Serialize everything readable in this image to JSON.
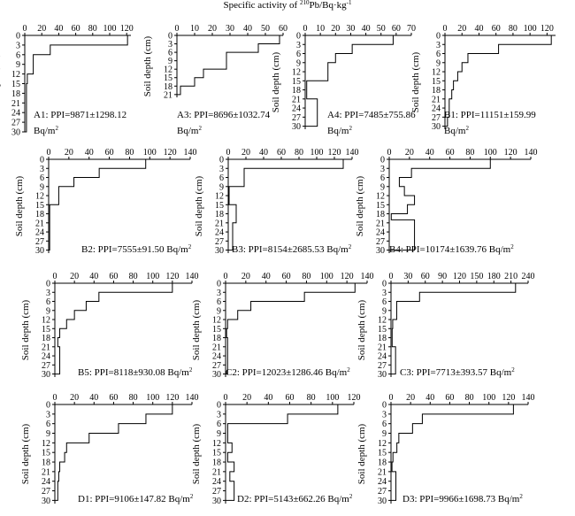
{
  "figure": {
    "title_prefix": "Specific activity of ",
    "title_sup": "210",
    "title_mid": "Pb/Bq·kg",
    "title_sup2": "-1"
  },
  "chart_data": [
    {
      "id": "A1",
      "type": "line",
      "ylabel": "Soil depth (cm)",
      "label": "A1: PPI=9871±1298.12 Bq/m",
      "label_line2": "Bq/m",
      "label_sup": "2",
      "xlim": [
        0,
        125
      ],
      "xticks": [
        0,
        20,
        40,
        60,
        80,
        100,
        120
      ],
      "ylim": [
        0,
        30
      ],
      "yticks": [
        0,
        3,
        6,
        9,
        12,
        15,
        18,
        21,
        24,
        27,
        30
      ],
      "steps": [
        [
          0,
          3,
          121
        ],
        [
          3,
          6,
          30
        ],
        [
          6,
          12,
          10
        ],
        [
          12,
          15,
          3
        ],
        [
          15,
          18,
          2
        ],
        [
          18,
          21,
          2
        ],
        [
          21,
          24,
          2
        ],
        [
          24,
          27,
          2
        ],
        [
          27,
          30,
          2
        ]
      ]
    },
    {
      "id": "A3",
      "type": "line",
      "ylabel": "Soil depth (cm)",
      "label": "A3: PPI=8696±1032.74",
      "label_line2": "Bq/m",
      "label_sup": "2",
      "xlim": [
        0,
        60
      ],
      "xticks": [
        0,
        10,
        20,
        30,
        40,
        50,
        60
      ],
      "ylim": [
        0,
        22
      ],
      "yticks": [
        0,
        3,
        6,
        9,
        12,
        15,
        18,
        21
      ],
      "steps": [
        [
          0,
          3,
          58
        ],
        [
          3,
          6,
          46
        ],
        [
          6,
          12,
          28
        ],
        [
          12,
          15,
          15
        ],
        [
          15,
          18,
          10
        ],
        [
          18,
          21,
          2
        ]
      ]
    },
    {
      "id": "A4",
      "type": "line",
      "ylabel": "Soil depth (cm)",
      "label": "A4: PPI=7485±755.86",
      "label_line2": "Bq/m",
      "label_sup": "2",
      "xlim": [
        0,
        70
      ],
      "xticks": [
        0,
        10,
        20,
        30,
        40,
        50,
        60,
        70
      ],
      "ylim": [
        0,
        31
      ],
      "yticks": [
        0,
        3,
        6,
        9,
        12,
        15,
        18,
        21,
        24,
        27,
        30
      ],
      "steps": [
        [
          0,
          3,
          58
        ],
        [
          3,
          6,
          31
        ],
        [
          6,
          9,
          20
        ],
        [
          9,
          15,
          15
        ],
        [
          15,
          21,
          1
        ],
        [
          21,
          30,
          8
        ]
      ]
    },
    {
      "id": "B1",
      "type": "line",
      "ylabel": "Soil depth (cm)",
      "label": "B1: PPI=11151±159.99",
      "label_line2": "Bq/m",
      "label_sup": "2",
      "xlim": [
        0,
        130
      ],
      "xticks": [
        0,
        20,
        40,
        60,
        80,
        100,
        120
      ],
      "ylim": [
        0,
        31
      ],
      "yticks": [
        0,
        3,
        6,
        9,
        12,
        15,
        18,
        21,
        24,
        27,
        30
      ],
      "steps": [
        [
          0,
          3,
          125
        ],
        [
          3,
          6,
          63
        ],
        [
          6,
          9,
          27
        ],
        [
          9,
          12,
          20
        ],
        [
          12,
          15,
          15
        ],
        [
          15,
          18,
          10
        ],
        [
          18,
          21,
          8
        ],
        [
          21,
          24,
          5
        ],
        [
          24,
          27,
          5
        ],
        [
          27,
          30,
          3
        ]
      ]
    },
    {
      "id": "B2",
      "type": "line",
      "ylabel": "Soil depth (cm)",
      "label": "B2: PPI=7555±91.50 Bq/m",
      "label_sup": "2",
      "xlim": [
        0,
        140
      ],
      "xticks": [
        0,
        20,
        40,
        60,
        80,
        100,
        120,
        140
      ],
      "ylim": [
        0,
        31
      ],
      "yticks": [
        0,
        3,
        6,
        9,
        12,
        15,
        18,
        21,
        24,
        27,
        30
      ],
      "steps": [
        [
          0,
          3,
          96
        ],
        [
          3,
          6,
          50
        ],
        [
          6,
          9,
          25
        ],
        [
          9,
          15,
          10
        ],
        [
          15,
          30,
          1
        ]
      ]
    },
    {
      "id": "B3",
      "type": "line",
      "ylabel": "Soil depth (cm)",
      "label": "B3: PPI=8154±2685.53 Bq/m",
      "label_sup": "2",
      "xlim": [
        0,
        140
      ],
      "xticks": [
        0,
        20,
        40,
        60,
        80,
        100,
        120,
        140
      ],
      "ylim": [
        0,
        31
      ],
      "yticks": [
        0,
        3,
        6,
        9,
        12,
        15,
        18,
        21,
        24,
        27,
        30
      ],
      "steps": [
        [
          0,
          3,
          130
        ],
        [
          3,
          9,
          18
        ],
        [
          9,
          15,
          1
        ],
        [
          15,
          21,
          9
        ],
        [
          21,
          30,
          5
        ]
      ]
    },
    {
      "id": "B4",
      "type": "line",
      "ylabel": "Soil depth (cm)",
      "label": "B4: PPI=10174±1639.76 Bq/m",
      "label_sup": "2",
      "xlim": [
        0,
        140
      ],
      "xticks": [
        0,
        20,
        40,
        60,
        80,
        100,
        120,
        140
      ],
      "ylim": [
        0,
        31
      ],
      "yticks": [
        0,
        3,
        6,
        9,
        12,
        15,
        18,
        21,
        24,
        27,
        30
      ],
      "steps": [
        [
          0,
          3,
          100
        ],
        [
          3,
          6,
          22
        ],
        [
          6,
          9,
          10
        ],
        [
          9,
          12,
          15
        ],
        [
          12,
          15,
          25
        ],
        [
          15,
          18,
          18
        ],
        [
          18,
          20,
          2
        ],
        [
          20,
          30,
          25
        ]
      ]
    },
    {
      "id": "B5",
      "type": "line",
      "ylabel": "Soil depth (cm)",
      "label": "B5: PPI=8118±930.08 Bq/m",
      "label_sup": "2",
      "xlim": [
        0,
        140
      ],
      "xticks": [
        0,
        20,
        40,
        60,
        80,
        100,
        120,
        140
      ],
      "ylim": [
        0,
        31
      ],
      "yticks": [
        0,
        3,
        6,
        9,
        12,
        15,
        18,
        21,
        24,
        27,
        30
      ],
      "steps": [
        [
          0,
          3,
          120
        ],
        [
          3,
          6,
          45
        ],
        [
          6,
          9,
          32
        ],
        [
          9,
          12,
          20
        ],
        [
          12,
          15,
          12
        ],
        [
          15,
          18,
          5
        ],
        [
          18,
          21,
          3
        ],
        [
          21,
          30,
          5
        ]
      ]
    },
    {
      "id": "C2",
      "type": "line",
      "ylabel": "Soil depth (cm)",
      "label": "C2: PPI=12023±1286.46 Bq/m",
      "label_sup": "2",
      "xlim": [
        0,
        140
      ],
      "xticks": [
        0,
        20,
        40,
        60,
        80,
        100,
        120,
        140
      ],
      "ylim": [
        0,
        31
      ],
      "yticks": [
        0,
        3,
        6,
        9,
        12,
        15,
        18,
        21,
        24,
        27,
        30
      ],
      "steps": [
        [
          0,
          3,
          128
        ],
        [
          3,
          6,
          78
        ],
        [
          6,
          9,
          25
        ],
        [
          9,
          12,
          12
        ],
        [
          12,
          15,
          2
        ],
        [
          15,
          18,
          1
        ],
        [
          18,
          21,
          2
        ],
        [
          21,
          24,
          2
        ],
        [
          24,
          27,
          2
        ],
        [
          27,
          30,
          2
        ]
      ]
    },
    {
      "id": "C3",
      "type": "line",
      "ylabel": "Soil depth (cm)",
      "label": "C3: PPI=7713±393.57 Bq/m",
      "label_sup": "2",
      "xlim": [
        0,
        240
      ],
      "xticks": [
        0,
        30,
        60,
        90,
        120,
        150,
        180,
        210,
        240
      ],
      "ylim": [
        0,
        31
      ],
      "yticks": [
        0,
        3,
        6,
        9,
        12,
        15,
        18,
        21,
        24,
        27,
        30
      ],
      "steps": [
        [
          0,
          3,
          218
        ],
        [
          3,
          6,
          50
        ],
        [
          6,
          12,
          10
        ],
        [
          12,
          15,
          3
        ],
        [
          15,
          21,
          2
        ],
        [
          21,
          30,
          8
        ]
      ]
    },
    {
      "id": "D1",
      "type": "line",
      "ylabel": "Soil depth (cm)",
      "label": "D1: PPI=9106±147.82 Bq/m",
      "label_sup": "2",
      "xlim": [
        0,
        140
      ],
      "xticks": [
        0,
        20,
        40,
        60,
        80,
        100,
        120,
        140
      ],
      "ylim": [
        0,
        31
      ],
      "yticks": [
        0,
        3,
        6,
        9,
        12,
        15,
        18,
        21,
        24,
        27,
        30
      ],
      "steps": [
        [
          0,
          3,
          120
        ],
        [
          3,
          6,
          93
        ],
        [
          6,
          9,
          65
        ],
        [
          9,
          12,
          35
        ],
        [
          12,
          15,
          12
        ],
        [
          15,
          18,
          10
        ],
        [
          18,
          21,
          5
        ],
        [
          21,
          24,
          4
        ],
        [
          24,
          27,
          3
        ],
        [
          27,
          30,
          3
        ]
      ]
    },
    {
      "id": "D2",
      "type": "line",
      "ylabel": "Soil depth (cm)",
      "label": "D2: PPI=5143±662.26 Bq/m",
      "label_sup": "2",
      "xlim": [
        0,
        120
      ],
      "xticks": [
        0,
        20,
        40,
        60,
        80,
        100,
        120
      ],
      "ylim": [
        0,
        31
      ],
      "yticks": [
        0,
        3,
        6,
        9,
        12,
        15,
        18,
        21,
        24,
        27,
        30
      ],
      "steps": [
        [
          0,
          3,
          105
        ],
        [
          3,
          6,
          58
        ],
        [
          6,
          12,
          2
        ],
        [
          12,
          15,
          6
        ],
        [
          15,
          18,
          2
        ],
        [
          18,
          21,
          8
        ],
        [
          21,
          24,
          4
        ],
        [
          24,
          30,
          8
        ]
      ]
    },
    {
      "id": "D3",
      "type": "line",
      "ylabel": "Soil depth (cm)",
      "label": "D3: PPI=9966±1698.73 Bq/m",
      "label_sup": "2",
      "xlim": [
        0,
        140
      ],
      "xticks": [
        0,
        20,
        40,
        60,
        80,
        100,
        120,
        140
      ],
      "ylim": [
        0,
        31
      ],
      "yticks": [
        0,
        3,
        6,
        9,
        12,
        15,
        18,
        21,
        24,
        27,
        30
      ],
      "steps": [
        [
          0,
          3,
          125
        ],
        [
          3,
          6,
          32
        ],
        [
          6,
          9,
          22
        ],
        [
          9,
          12,
          8
        ],
        [
          12,
          15,
          6
        ],
        [
          15,
          18,
          2
        ],
        [
          18,
          21,
          1
        ],
        [
          21,
          30,
          5
        ]
      ]
    }
  ]
}
